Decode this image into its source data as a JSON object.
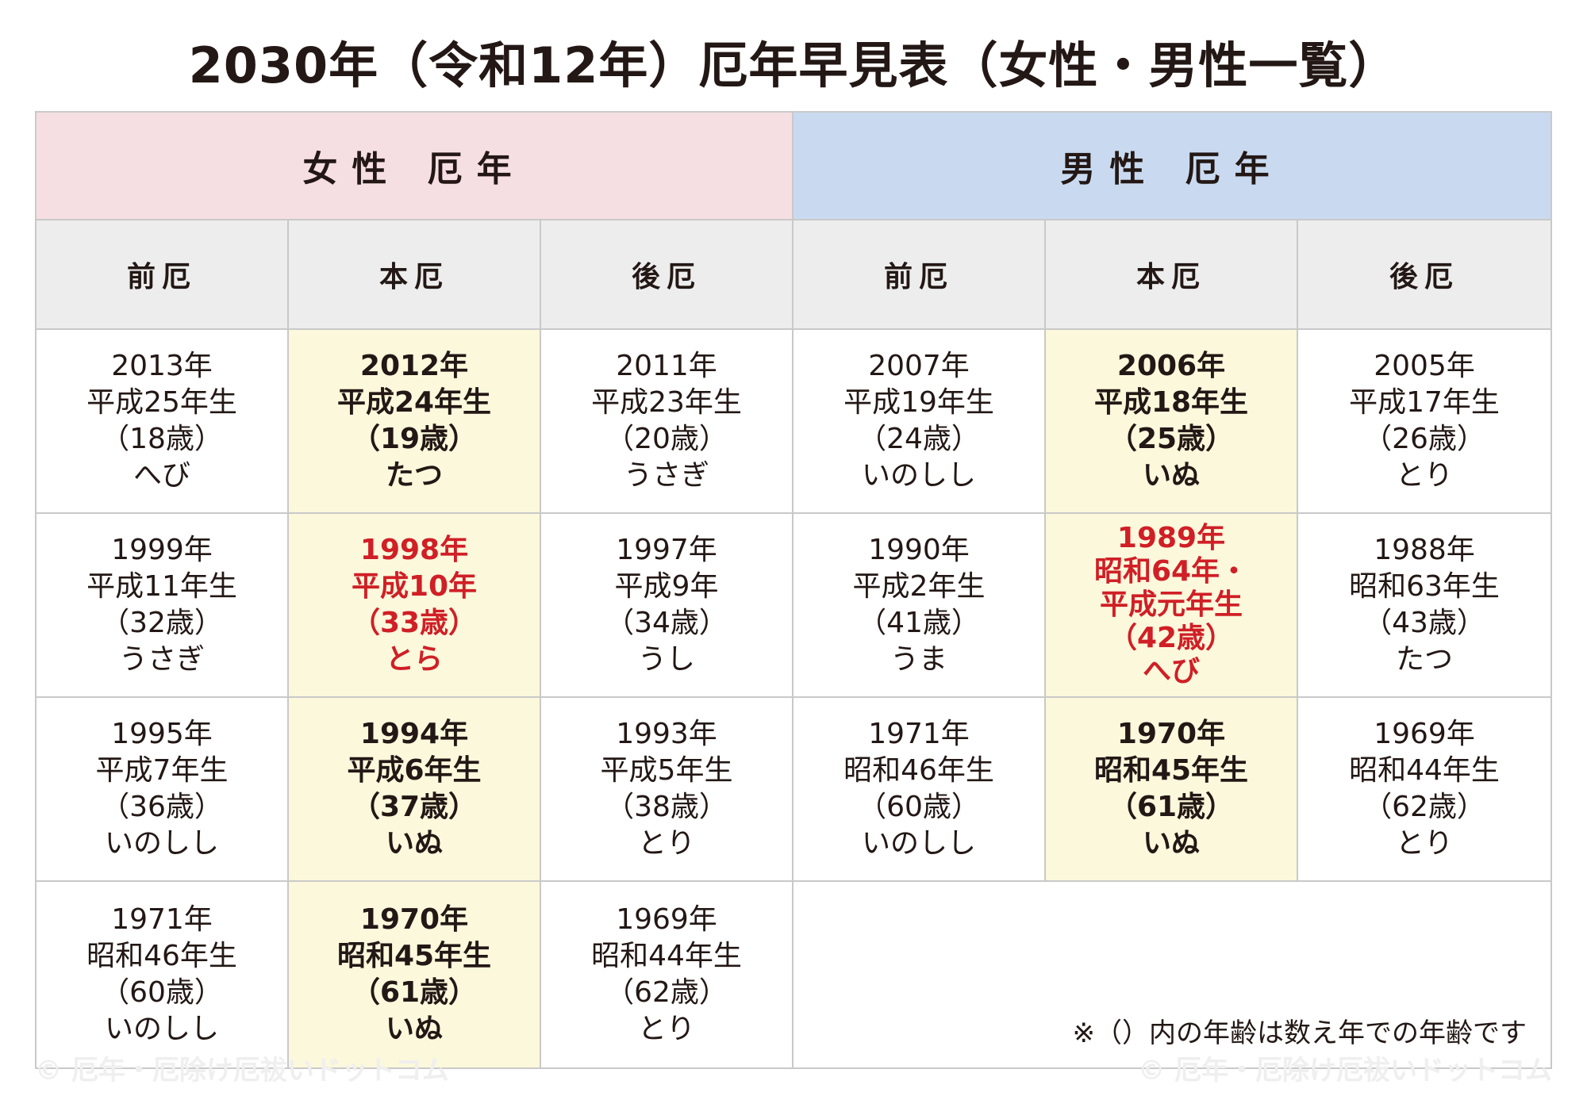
{
  "title": "2030年（令和12年）厄年早見表（女性・男性一覧）",
  "groups": {
    "female": "女性 厄年",
    "male": "男性 厄年"
  },
  "sub_headers": [
    "前厄",
    "本厄",
    "後厄",
    "前厄",
    "本厄",
    "後厄"
  ],
  "rows": [
    [
      {
        "year": "2013年",
        "era": "平成25年生",
        "age": "（18歳）",
        "zodiac": "へび"
      },
      {
        "year": "2012年",
        "era": "平成24年生",
        "age": "（19歳）",
        "zodiac": "たつ"
      },
      {
        "year": "2011年",
        "era": "平成23年生",
        "age": "（20歳）",
        "zodiac": "うさぎ"
      },
      {
        "year": "2007年",
        "era": "平成19年生",
        "age": "（24歳）",
        "zodiac": "いのしし"
      },
      {
        "year": "2006年",
        "era": "平成18年生",
        "age": "（25歳）",
        "zodiac": "いぬ"
      },
      {
        "year": "2005年",
        "era": "平成17年生",
        "age": "（26歳）",
        "zodiac": "とり"
      }
    ],
    [
      {
        "year": "1999年",
        "era": "平成11年生",
        "age": "（32歳）",
        "zodiac": "うさぎ"
      },
      {
        "year": "1998年",
        "era": "平成10年",
        "age": "（33歳）",
        "zodiac": "とら"
      },
      {
        "year": "1997年",
        "era": "平成9年",
        "age": "（34歳）",
        "zodiac": "うし"
      },
      {
        "year": "1990年",
        "era": "平成2年生",
        "age": "（41歳）",
        "zodiac": "うま"
      },
      {
        "year": "1989年",
        "era": "昭和64年・",
        "era2": "平成元年生",
        "age": "（42歳）",
        "zodiac": "へび"
      },
      {
        "year": "1988年",
        "era": "昭和63年生",
        "age": "（43歳）",
        "zodiac": "たつ"
      }
    ],
    [
      {
        "year": "1995年",
        "era": "平成7年生",
        "age": "（36歳）",
        "zodiac": "いのしし"
      },
      {
        "year": "1994年",
        "era": "平成6年生",
        "age": "（37歳）",
        "zodiac": "いぬ"
      },
      {
        "year": "1993年",
        "era": "平成5年生",
        "age": "（38歳）",
        "zodiac": "とり"
      },
      {
        "year": "1971年",
        "era": "昭和46年生",
        "age": "（60歳）",
        "zodiac": "いのしし"
      },
      {
        "year": "1970年",
        "era": "昭和45年生",
        "age": "（61歳）",
        "zodiac": "いぬ"
      },
      {
        "year": "1969年",
        "era": "昭和44年生",
        "age": "（62歳）",
        "zodiac": "とり"
      }
    ],
    [
      {
        "year": "1971年",
        "era": "昭和46年生",
        "age": "（60歳）",
        "zodiac": "いのしし"
      },
      {
        "year": "1970年",
        "era": "昭和45年生",
        "age": "（61歳）",
        "zodiac": "いぬ"
      },
      {
        "year": "1969年",
        "era": "昭和44年生",
        "age": "（62歳）",
        "zodiac": "とり"
      }
    ]
  ],
  "note": "※（）内の年齢は数え年での年齢です",
  "watermark": "© 厄年・厄除け厄祓いドットコム",
  "colors": {
    "female_header": "#f6dfe3",
    "male_header": "#c9daf0",
    "sub_header": "#ededed",
    "honyaku_bg": "#fbf8dc",
    "highlight_red": "#d01f26"
  }
}
